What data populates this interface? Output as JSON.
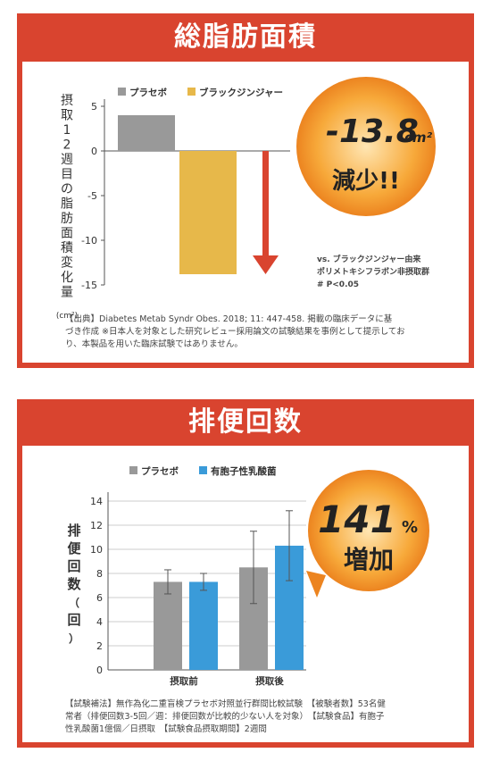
{
  "panel1": {
    "title": "総脂肪面積",
    "ylabel": "摂取12週目の脂肪面積変化量",
    "yunit": "cm²",
    "legend": [
      "プラセボ",
      "ブラックジンジャー"
    ],
    "badge_value": "-13.8",
    "badge_unit": "cm²",
    "badge_text": "減少!!",
    "note_lines": [
      "vs. ブラックジンジャー由来",
      "ポリメトキシフラボン非摂取群",
      "# P<0.05"
    ],
    "source_lines": [
      "【出典】Diabetes Metab Syndr Obes. 2018; 11: 447-458. 掲載の臨床データに基",
      "づき作成 ※日本人を対象とした研究レビュー採用論文の試験結果を事例として提示してお",
      "り、本製品を用いた臨床試験ではありません。"
    ]
  },
  "panel2": {
    "title": "排便回数",
    "ylabel": "排便回数（回）",
    "legend": [
      "プラセボ",
      "有胞子性乳酸菌"
    ],
    "badge_value": "141",
    "badge_unit": "%",
    "badge_text": "増加",
    "footer_lines": [
      "【試験補法】無作為化二重盲検プラセボ対照並行群間比較試験　【被験者数】53名健",
      "常者（排便回数3-5回／週：排便回数が比較的少ない人を対象）　【試験食品】有胞子",
      "性乳酸菌1億個／日摂取　【試験食品摂取期間】2週間"
    ]
  },
  "colors": {
    "frame": "#d9442f",
    "placebo": "#999999",
    "ginger": "#e7b84a",
    "lactic": "#3a9bd9",
    "arrow": "#d9442f",
    "badge": "#f09a2c"
  },
  "chart_data": [
    {
      "type": "bar",
      "categories": [
        "プラセボ",
        "ブラックジンジャー"
      ],
      "values": [
        4.0,
        -13.8
      ],
      "ylabel": "摂取12週目の脂肪面積変化量（cm²）",
      "ylim": [
        -15,
        5
      ],
      "yticks": [
        5,
        0,
        -5,
        -10,
        -15
      ],
      "legend": "top"
    },
    {
      "type": "bar",
      "categories": [
        "摂取前",
        "摂取後"
      ],
      "series": [
        {
          "name": "プラセボ",
          "values": [
            7.3,
            8.5
          ],
          "error": [
            1.0,
            3.0
          ]
        },
        {
          "name": "有胞子性乳酸菌",
          "values": [
            7.3,
            10.3
          ],
          "error": [
            0.7,
            2.9
          ]
        }
      ],
      "ylabel": "排便回数（回）",
      "ylim": [
        0,
        14
      ],
      "yticks": [
        0,
        2,
        4,
        6,
        8,
        10,
        12,
        14
      ],
      "grid": true,
      "legend": "top"
    }
  ]
}
